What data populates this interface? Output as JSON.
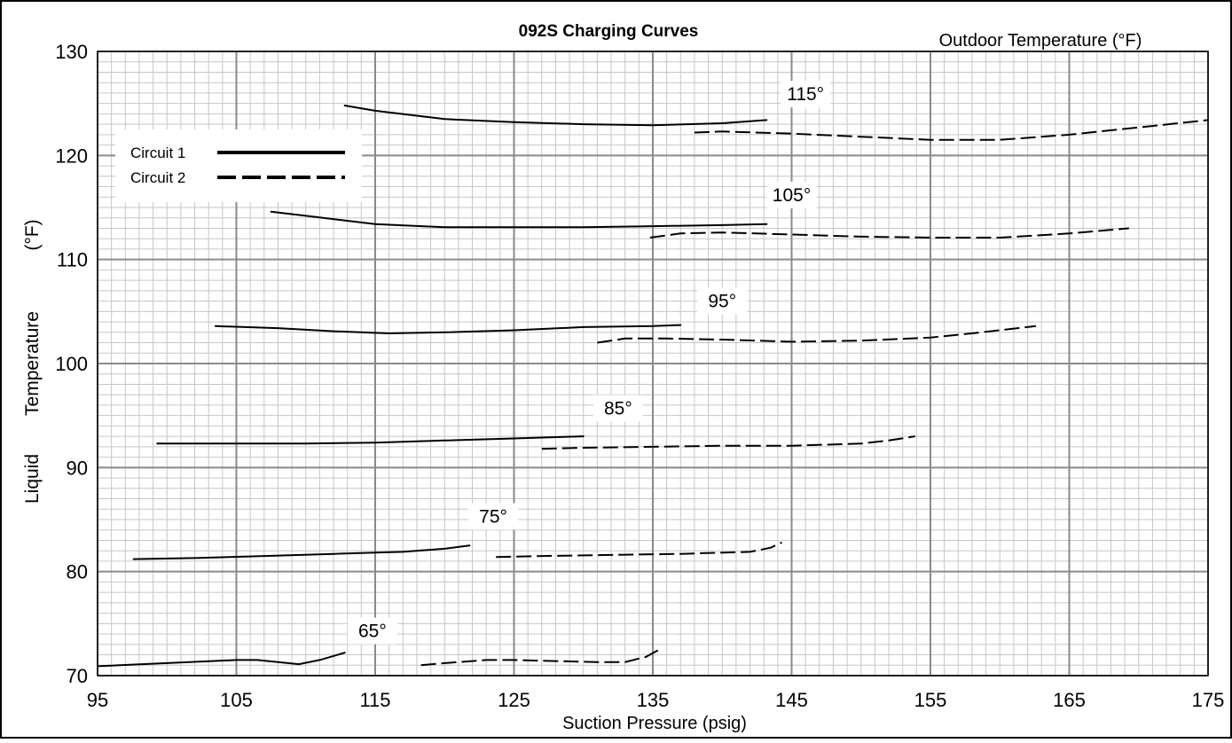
{
  "chart_data": {
    "type": "line",
    "title": "092S Charging Curves",
    "subtitle": "Outdoor Temperature (°F)",
    "xlabel": "Suction Pressure (psig)",
    "ylabel_parts": [
      "Liquid",
      "Temperature",
      "(°F)"
    ],
    "xlim": [
      95,
      175
    ],
    "ylim": [
      70,
      130
    ],
    "x_ticks": [
      95,
      105,
      115,
      125,
      135,
      145,
      155,
      165,
      175
    ],
    "y_ticks": [
      70,
      80,
      90,
      100,
      110,
      120,
      130
    ],
    "grid": true,
    "legend_position": "top-left",
    "legend": [
      {
        "label": "Circuit 1",
        "style": "solid"
      },
      {
        "label": "Circuit 2",
        "style": "dashed"
      }
    ],
    "curves": [
      {
        "temp_label": "115°",
        "label_at": [
          146,
          125.3
        ],
        "circuit1": [
          [
            112.8,
            124.8
          ],
          [
            115,
            124.3
          ],
          [
            120,
            123.5
          ],
          [
            125,
            123.2
          ],
          [
            130,
            123.0
          ],
          [
            135,
            122.9
          ],
          [
            140,
            123.1
          ],
          [
            143.2,
            123.4
          ]
        ],
        "circuit2": [
          [
            138,
            122.2
          ],
          [
            140,
            122.3
          ],
          [
            145,
            122.1
          ],
          [
            150,
            121.8
          ],
          [
            155,
            121.5
          ],
          [
            160,
            121.5
          ],
          [
            165,
            122.0
          ],
          [
            170,
            122.7
          ],
          [
            175,
            123.4
          ]
        ]
      },
      {
        "temp_label": "105°",
        "label_at": [
          145,
          115.6
        ],
        "circuit1": [
          [
            107.5,
            114.6
          ],
          [
            110,
            114.2
          ],
          [
            115,
            113.4
          ],
          [
            120,
            113.1
          ],
          [
            125,
            113.1
          ],
          [
            130,
            113.1
          ],
          [
            135,
            113.2
          ],
          [
            140,
            113.3
          ],
          [
            143.2,
            113.4
          ]
        ],
        "circuit2": [
          [
            134.8,
            112.1
          ],
          [
            137,
            112.5
          ],
          [
            140,
            112.6
          ],
          [
            145,
            112.4
          ],
          [
            150,
            112.2
          ],
          [
            155,
            112.1
          ],
          [
            160,
            112.1
          ],
          [
            165,
            112.5
          ],
          [
            169.3,
            113.0
          ]
        ]
      },
      {
        "temp_label": "95°",
        "label_at": [
          140,
          105.4
        ],
        "circuit1": [
          [
            103.5,
            103.6
          ],
          [
            108,
            103.4
          ],
          [
            112,
            103.1
          ],
          [
            116,
            102.9
          ],
          [
            120,
            103.0
          ],
          [
            125,
            103.2
          ],
          [
            130,
            103.5
          ],
          [
            135,
            103.6
          ],
          [
            137,
            103.7
          ]
        ],
        "circuit2": [
          [
            131,
            102.0
          ],
          [
            133,
            102.4
          ],
          [
            136,
            102.4
          ],
          [
            140,
            102.3
          ],
          [
            145,
            102.1
          ],
          [
            150,
            102.2
          ],
          [
            155,
            102.5
          ],
          [
            158,
            102.9
          ],
          [
            162.6,
            103.6
          ]
        ]
      },
      {
        "temp_label": "85°",
        "label_at": [
          132.5,
          95.1
        ],
        "circuit1": [
          [
            99.3,
            92.3
          ],
          [
            105,
            92.3
          ],
          [
            110,
            92.3
          ],
          [
            115,
            92.4
          ],
          [
            120,
            92.6
          ],
          [
            125,
            92.8
          ],
          [
            130,
            93.0
          ]
        ],
        "circuit2": [
          [
            127,
            91.8
          ],
          [
            130,
            91.9
          ],
          [
            135,
            92.0
          ],
          [
            140,
            92.1
          ],
          [
            145,
            92.1
          ],
          [
            150,
            92.3
          ],
          [
            152,
            92.6
          ],
          [
            153.9,
            93.0
          ]
        ]
      },
      {
        "temp_label": "75°",
        "label_at": [
          123.5,
          84.7
        ],
        "circuit1": [
          [
            97.6,
            81.2
          ],
          [
            102,
            81.3
          ],
          [
            107,
            81.5
          ],
          [
            112,
            81.7
          ],
          [
            117,
            81.9
          ],
          [
            120,
            82.2
          ],
          [
            121.8,
            82.5
          ]
        ],
        "circuit2": [
          [
            123.7,
            81.4
          ],
          [
            127,
            81.5
          ],
          [
            132,
            81.6
          ],
          [
            137,
            81.7
          ],
          [
            142,
            81.9
          ],
          [
            143.5,
            82.3
          ],
          [
            144.3,
            82.8
          ]
        ]
      },
      {
        "temp_label": "65°",
        "label_at": [
          114.8,
          73.7
        ],
        "circuit1": [
          [
            95,
            70.9
          ],
          [
            100,
            71.2
          ],
          [
            105,
            71.5
          ],
          [
            106.5,
            71.5
          ],
          [
            108,
            71.3
          ],
          [
            109.5,
            71.1
          ],
          [
            111,
            71.5
          ],
          [
            112.8,
            72.2
          ]
        ],
        "circuit2": [
          [
            118.3,
            71.0
          ],
          [
            120,
            71.2
          ],
          [
            123,
            71.5
          ],
          [
            125,
            71.5
          ],
          [
            128,
            71.4
          ],
          [
            131,
            71.3
          ],
          [
            133,
            71.3
          ],
          [
            134.5,
            71.8
          ],
          [
            135.6,
            72.6
          ]
        ]
      }
    ]
  }
}
